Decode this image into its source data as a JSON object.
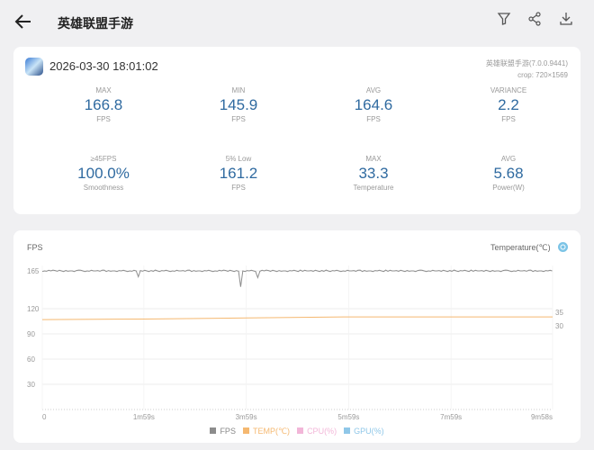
{
  "header": {
    "title": "英雄联盟手游",
    "icons": [
      "back-arrow-icon",
      "filter-icon",
      "share-icon",
      "download-icon"
    ]
  },
  "summary": {
    "date": "2026-03-30 18:01:02",
    "app_version": "英雄联盟手游(7.0.0.9441)",
    "crop": "crop: 720×1569",
    "stats": [
      {
        "label": "MAX",
        "value": "166.8",
        "unit": "FPS"
      },
      {
        "label": "MIN",
        "value": "145.9",
        "unit": "FPS"
      },
      {
        "label": "AVG",
        "value": "164.6",
        "unit": "FPS"
      },
      {
        "label": "VARIANCE",
        "value": "2.2",
        "unit": "FPS"
      },
      {
        "label": "≥45FPS",
        "value": "100.0%",
        "unit": "Smoothness"
      },
      {
        "label": "5% Low",
        "value": "161.2",
        "unit": "FPS"
      },
      {
        "label": "MAX",
        "value": "33.3",
        "unit": "Temperature"
      },
      {
        "label": "AVG",
        "value": "5.68",
        "unit": "Power(W)"
      }
    ]
  },
  "chart_data": {
    "type": "line",
    "ylabel_left": "FPS",
    "ylabel_right": "Temperature(℃)",
    "y_left_ticks": [
      "165",
      "120",
      "90",
      "60",
      "30"
    ],
    "y_right_ticks": [
      "35",
      "30"
    ],
    "x_ticks": [
      "0",
      "1m59s",
      "3m59s",
      "5m59s",
      "7m59s",
      "9m58s"
    ],
    "x_range_seconds": [
      0,
      598
    ],
    "colors": {
      "FPS": "#8c8c8c",
      "TEMP": "#f5b870",
      "CPU": "#f2b6d8",
      "GPU": "#8fc7e8"
    },
    "series": [
      {
        "name": "FPS",
        "x_step_seconds": 10,
        "values": [
          165,
          166,
          165,
          165,
          166,
          165,
          165,
          166,
          165,
          165,
          165,
          158,
          165,
          166,
          165,
          165,
          165,
          166,
          165,
          165,
          165,
          166,
          165,
          146,
          165,
          157,
          166,
          165,
          165,
          165,
          166,
          165,
          165,
          166,
          165,
          165,
          165,
          166,
          165,
          165,
          166,
          165,
          165,
          165,
          166,
          165,
          165,
          165,
          166,
          165,
          166,
          165,
          165,
          165,
          166,
          165,
          165,
          166,
          165,
          165
        ]
      },
      {
        "name": "TEMP(℃)",
        "x": [
          0,
          120,
          240,
          360,
          598
        ],
        "values": [
          32.3,
          32.5,
          32.9,
          33.3,
          33.3
        ]
      },
      {
        "name": "CPU(%)",
        "values": []
      },
      {
        "name": "GPU(%)",
        "values": []
      }
    ],
    "legend": [
      "FPS",
      "TEMP(℃)",
      "CPU(%)",
      "GPU(%)"
    ],
    "legend_position": "bottom",
    "grid": true
  }
}
